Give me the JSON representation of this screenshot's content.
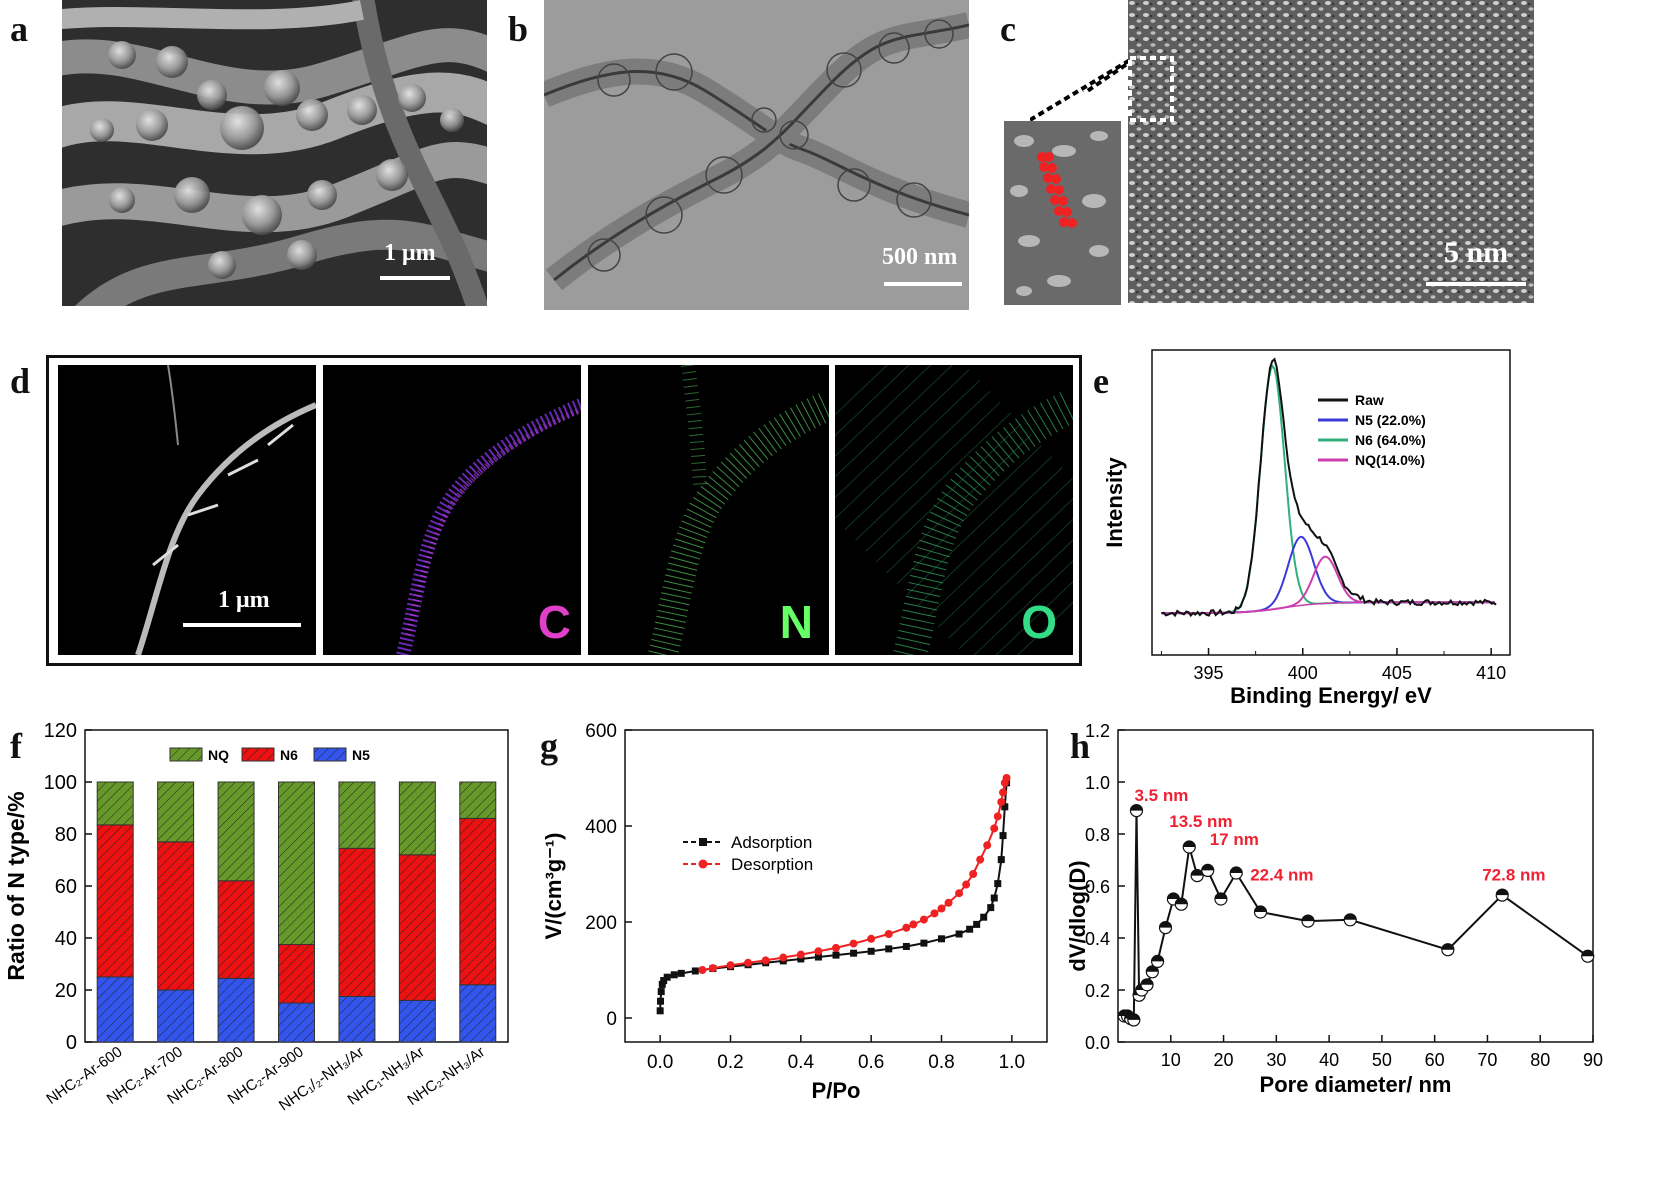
{
  "panel_letters": {
    "a": "a",
    "b": "b",
    "c": "c",
    "d": "d",
    "e": "e",
    "f": "f",
    "g": "g",
    "h": "h"
  },
  "panel_a": {
    "scale_bar": "1 μm"
  },
  "panel_b": {
    "scale_bar": "500 nm"
  },
  "panel_c": {
    "scale_bar": "5 nm"
  },
  "panel_d": {
    "scale_bar": "1 μm",
    "maps": [
      "C",
      "N",
      "O"
    ],
    "map_colors": [
      "#e040c8",
      "#66ff66",
      "#33dd88"
    ]
  },
  "chart_data": [
    {
      "id": "e",
      "type": "line",
      "xlabel": "Binding Energy/ eV",
      "ylabel": "Intensity",
      "xlim": [
        392,
        411
      ],
      "xticks": [
        395,
        400,
        405,
        410
      ],
      "legend": [
        "Raw",
        "N5 (22.0%)",
        "N6 (64.0%)",
        "NQ(14.0%)"
      ],
      "colors": {
        "Raw": "#111111",
        "N5": "#3a3ad6",
        "N6": "#2fb07a",
        "NQ": "#cc3fae"
      },
      "peaks": [
        {
          "name": "N6 (64.0%)",
          "center": 398.4,
          "fwhm": 1.5,
          "height": 0.78
        },
        {
          "name": "N5 (22.0%)",
          "center": 399.9,
          "fwhm": 1.6,
          "height": 0.22
        },
        {
          "name": "NQ(14.0%)",
          "center": 401.2,
          "fwhm": 1.5,
          "height": 0.15
        }
      ]
    },
    {
      "id": "f",
      "type": "bar",
      "ylabel": "Ratio of N type/%",
      "ylim": [
        0,
        120
      ],
      "yticks": [
        0,
        20,
        40,
        60,
        80,
        100,
        120
      ],
      "categories": [
        "NHC₂-Ar-600",
        "NHC₂-Ar-700",
        "NHC₂-Ar-800",
        "NHC₂-Ar-900",
        "NHC₁/₂-NH₃/Ar",
        "NHC₁-NH₃/Ar",
        "NHC₂-NH₃/Ar"
      ],
      "series": [
        {
          "name": "N5",
          "values": [
            25,
            20,
            24.5,
            15,
            17.5,
            16,
            22
          ],
          "color": "#3355ee"
        },
        {
          "name": "N6",
          "values": [
            58.5,
            57,
            37.5,
            22.5,
            57,
            56,
            64
          ],
          "color": "#ee1111"
        },
        {
          "name": "NQ",
          "values": [
            16.5,
            23,
            38,
            62.5,
            25.5,
            28,
            14
          ],
          "color": "#66992a"
        }
      ],
      "legend": [
        "NQ",
        "N6",
        "N5"
      ]
    },
    {
      "id": "g",
      "type": "line",
      "xlabel": "P/Po",
      "ylabel": "V/(cm³g⁻¹)",
      "xlim": [
        -0.1,
        1.1
      ],
      "ylim": [
        -50,
        600
      ],
      "xticks": [
        0.0,
        0.2,
        0.4,
        0.6,
        0.8,
        1.0
      ],
      "yticks": [
        0,
        200,
        400,
        600
      ],
      "series": [
        {
          "name": "Adsorption",
          "color": "#111111",
          "x": [
            0.0,
            0.001,
            0.003,
            0.006,
            0.01,
            0.02,
            0.04,
            0.06,
            0.1,
            0.15,
            0.2,
            0.25,
            0.3,
            0.35,
            0.4,
            0.45,
            0.5,
            0.55,
            0.6,
            0.65,
            0.7,
            0.75,
            0.8,
            0.85,
            0.88,
            0.9,
            0.92,
            0.94,
            0.95,
            0.96,
            0.97,
            0.975,
            0.98,
            0.985
          ],
          "y": [
            15,
            35,
            55,
            70,
            78,
            85,
            90,
            93,
            98,
            103,
            107,
            111,
            115,
            119,
            123,
            127,
            131,
            135,
            139,
            144,
            149,
            156,
            165,
            175,
            185,
            195,
            210,
            230,
            250,
            280,
            330,
            380,
            440,
            490
          ]
        },
        {
          "name": "Desorption",
          "color": "#ee2222",
          "x": [
            0.985,
            0.98,
            0.975,
            0.97,
            0.96,
            0.95,
            0.93,
            0.91,
            0.89,
            0.87,
            0.85,
            0.82,
            0.8,
            0.78,
            0.75,
            0.72,
            0.7,
            0.65,
            0.6,
            0.55,
            0.5,
            0.45,
            0.4,
            0.35,
            0.3,
            0.25,
            0.2,
            0.15,
            0.12
          ],
          "y": [
            500,
            490,
            470,
            450,
            420,
            395,
            360,
            330,
            300,
            278,
            260,
            240,
            228,
            218,
            205,
            195,
            188,
            175,
            165,
            155,
            146,
            139,
            132,
            126,
            120,
            115,
            110,
            104,
            100
          ]
        }
      ]
    },
    {
      "id": "h",
      "type": "scatter",
      "xlabel": "Pore diameter/ nm",
      "ylabel": "dV/dlog(D)",
      "xlim": [
        0,
        90
      ],
      "ylim": [
        0,
        1.2
      ],
      "xticks": [
        10,
        20,
        30,
        40,
        50,
        60,
        70,
        80,
        90
      ],
      "yticks": [
        0.0,
        0.2,
        0.4,
        0.6,
        0.8,
        1.0,
        1.2
      ],
      "x": [
        1.2,
        1.8,
        2.4,
        3.0,
        3.5,
        4.0,
        4.5,
        5.5,
        6.5,
        7.5,
        9,
        10.5,
        12,
        13.5,
        15,
        17,
        19.5,
        22.4,
        27,
        36,
        44,
        62.5,
        72.8,
        89
      ],
      "y": [
        0.1,
        0.1,
        0.09,
        0.085,
        0.89,
        0.18,
        0.2,
        0.22,
        0.27,
        0.31,
        0.44,
        0.55,
        0.53,
        0.75,
        0.64,
        0.66,
        0.55,
        0.65,
        0.5,
        0.465,
        0.47,
        0.355,
        0.565,
        0.33
      ],
      "annotations": [
        {
          "text": "3.5 nm",
          "x": 3.5,
          "y": 0.95
        },
        {
          "text": "13.5 nm",
          "x": 13.5,
          "y": 0.85
        },
        {
          "text": "17 nm",
          "x": 17,
          "y": 0.78
        },
        {
          "text": "22.4 nm",
          "x": 22.4,
          "y": 0.645
        },
        {
          "text": "72.8 nm",
          "x": 72.8,
          "y": 0.645
        }
      ],
      "annotation_color": "#ee2233"
    }
  ]
}
